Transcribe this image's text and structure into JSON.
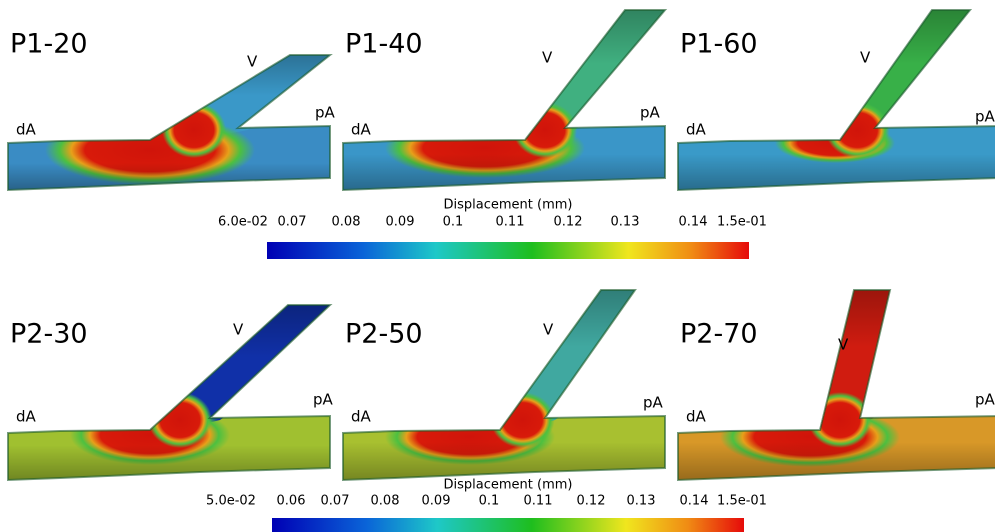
{
  "panels": [
    {
      "title": "P1-20",
      "labels": [
        "dA",
        "V",
        "pA"
      ]
    },
    {
      "title": "P1-40",
      "labels": [
        "dA",
        "V",
        "pA"
      ]
    },
    {
      "title": "P1-60",
      "labels": [
        "dA",
        "V",
        "pA"
      ]
    },
    {
      "title": "P2-30",
      "labels": [
        "dA",
        "V",
        "pA"
      ]
    },
    {
      "title": "P2-50",
      "labels": [
        "dA",
        "V",
        "pA"
      ]
    },
    {
      "title": "P2-70",
      "labels": [
        "dA",
        "V",
        "pA"
      ]
    }
  ],
  "colorbars": [
    {
      "title": "Displacement (mm)",
      "ticks": [
        "6.0e-02",
        "0.07",
        "0.08",
        "0.09",
        "0.1",
        "0.11",
        "0.12",
        "0.13",
        "0.14",
        "1.5e-01"
      ]
    },
    {
      "title": "Displacement (mm)",
      "ticks": [
        "5.0e-02",
        "0.06",
        "0.07",
        "0.08",
        "0.09",
        "0.1",
        "0.11",
        "0.12",
        "0.13",
        "0.14",
        "1.5e-01"
      ]
    }
  ]
}
